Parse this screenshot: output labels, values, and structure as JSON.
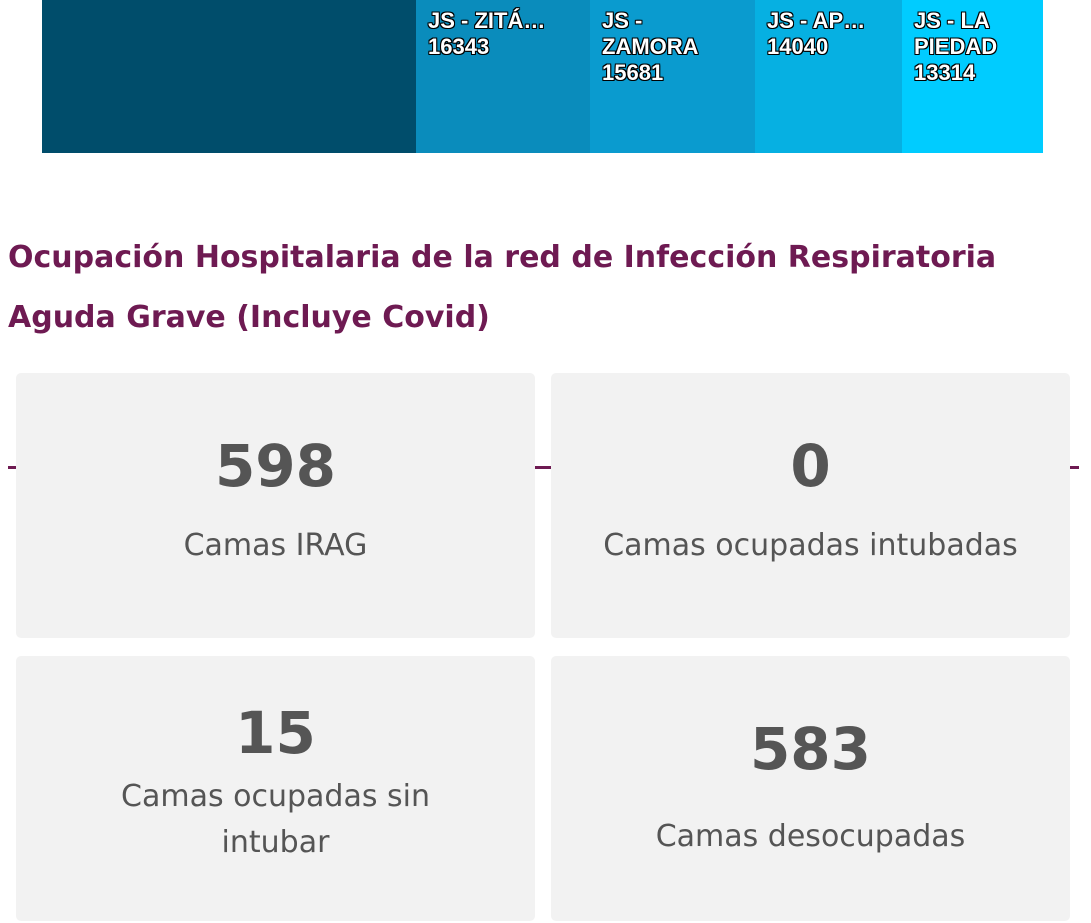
{
  "treemap": {
    "cells": [
      {
        "label": "JS - ZITÁ…",
        "value": "16343"
      },
      {
        "label": "JS - ZAMORA",
        "value": "15681"
      },
      {
        "label": "JS - AP…",
        "value": "14040"
      },
      {
        "label": "JS - LA PIEDAD",
        "value": "13314"
      }
    ]
  },
  "section": {
    "title": "Ocupación Hospitalaria de la red de Infección Respiratoria Aguda Grave (Incluye Covid)"
  },
  "cards": [
    {
      "value": "598",
      "label": "Camas IRAG"
    },
    {
      "value": "0",
      "label": "Camas ocupadas intubadas"
    },
    {
      "value": "15",
      "label": "Camas ocupadas sin intubar"
    },
    {
      "value": "583",
      "label": "Camas desocupadas"
    }
  ]
}
